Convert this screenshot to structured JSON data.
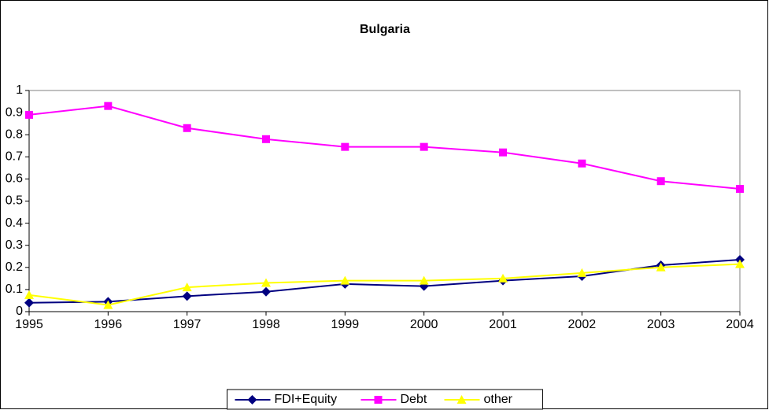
{
  "chart_data": {
    "type": "line",
    "title": "Bulgaria",
    "x": [
      1995,
      1996,
      1997,
      1998,
      1999,
      2000,
      2001,
      2002,
      2003,
      2004
    ],
    "xlim": [
      1995,
      2004
    ],
    "xticks": [
      1995,
      1996,
      1997,
      1998,
      1999,
      2000,
      2001,
      2002,
      2003,
      2004
    ],
    "ylim": [
      0,
      1
    ],
    "yticks": [
      0,
      0.1,
      0.2,
      0.3,
      0.4,
      0.5,
      0.6,
      0.7,
      0.8,
      0.9,
      1
    ],
    "legend": "bottom",
    "series": [
      {
        "name": "FDI+Equity",
        "color": "#000080",
        "marker": "diamond",
        "values": [
          0.04,
          0.045,
          0.07,
          0.09,
          0.125,
          0.115,
          0.14,
          0.16,
          0.21,
          0.235
        ]
      },
      {
        "name": "Debt",
        "color": "#ff00ff",
        "marker": "square",
        "values": [
          0.89,
          0.93,
          0.83,
          0.78,
          0.745,
          0.745,
          0.72,
          0.67,
          0.59,
          0.555
        ]
      },
      {
        "name": "other",
        "color": "#ffff00",
        "marker": "triangle",
        "values": [
          0.075,
          0.03,
          0.11,
          0.13,
          0.14,
          0.14,
          0.15,
          0.175,
          0.2,
          0.215
        ]
      }
    ]
  }
}
